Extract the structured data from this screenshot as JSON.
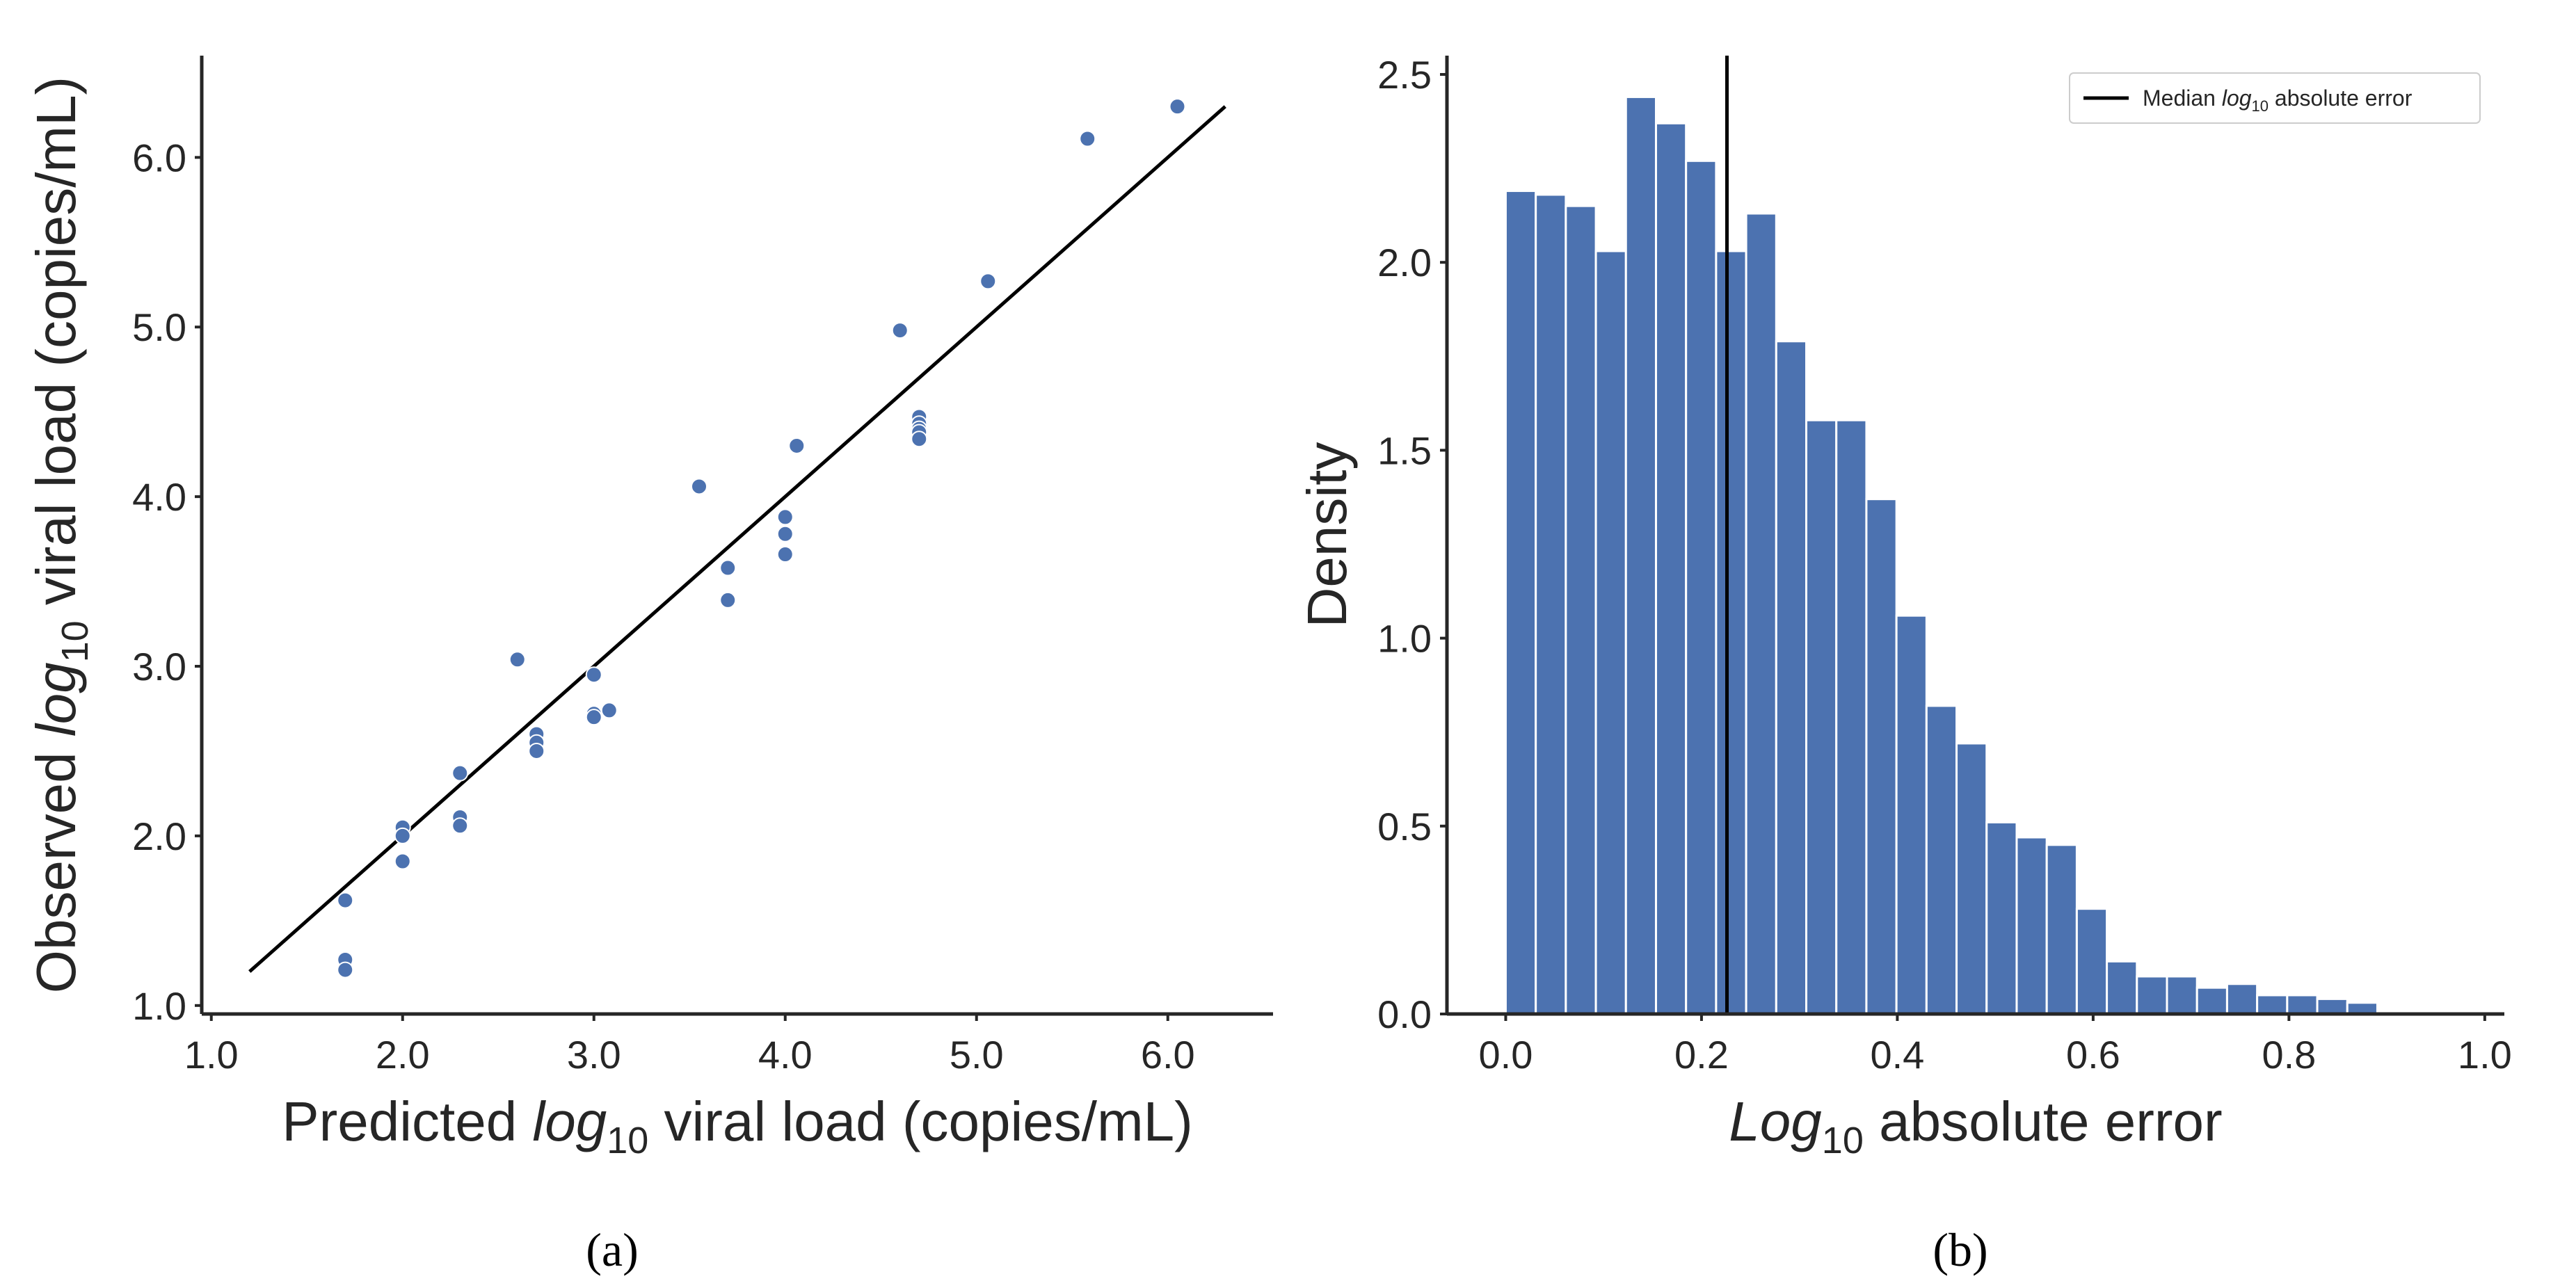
{
  "colors": {
    "marker": "#4c72b0",
    "bar": "#4c72b0",
    "line": "#000000",
    "axis": "#262626"
  },
  "chart_data": [
    {
      "panel": "(a)",
      "type": "scatter",
      "xlabel": {
        "pre": "Predicted ",
        "italic": "log",
        "sub": "10",
        "post": " viral load (copies/mL)"
      },
      "ylabel": {
        "pre": "Observed ",
        "italic": "log",
        "sub": "10",
        "post": " viral load (copies/mL)"
      },
      "xlim": [
        0.95,
        6.55
      ],
      "ylim": [
        0.95,
        6.6
      ],
      "xticks": [
        1.0,
        2.0,
        3.0,
        4.0,
        5.0,
        6.0
      ],
      "xtick_labels": [
        "1.0",
        "2.0",
        "3.0",
        "4.0",
        "5.0",
        "6.0"
      ],
      "yticks": [
        1.0,
        2.0,
        3.0,
        4.0,
        5.0,
        6.0
      ],
      "ytick_labels": [
        "1.0",
        "2.0",
        "3.0",
        "4.0",
        "5.0",
        "6.0"
      ],
      "identity_line": {
        "from": 1.2,
        "to": 6.3
      },
      "points": [
        [
          1.7,
          1.62
        ],
        [
          1.7,
          1.27
        ],
        [
          1.7,
          1.21
        ],
        [
          2.0,
          2.05
        ],
        [
          2.0,
          2.0
        ],
        [
          2.0,
          1.85
        ],
        [
          2.3,
          2.37
        ],
        [
          2.3,
          2.11
        ],
        [
          2.3,
          2.06
        ],
        [
          2.6,
          3.04
        ],
        [
          2.7,
          2.6
        ],
        [
          2.7,
          2.55
        ],
        [
          2.7,
          2.5
        ],
        [
          3.0,
          2.95
        ],
        [
          3.0,
          2.72
        ],
        [
          3.0,
          2.7
        ],
        [
          3.08,
          2.74
        ],
        [
          3.55,
          4.06
        ],
        [
          3.7,
          3.58
        ],
        [
          3.7,
          3.39
        ],
        [
          4.0,
          3.88
        ],
        [
          4.0,
          3.78
        ],
        [
          4.0,
          3.66
        ],
        [
          4.06,
          4.3
        ],
        [
          4.6,
          4.98
        ],
        [
          4.7,
          4.47
        ],
        [
          4.7,
          4.43
        ],
        [
          4.7,
          4.4
        ],
        [
          4.7,
          4.38
        ],
        [
          4.7,
          4.34
        ],
        [
          5.06,
          5.27
        ],
        [
          5.58,
          6.11
        ],
        [
          6.05,
          6.3
        ]
      ]
    },
    {
      "panel": "(b)",
      "type": "bar",
      "subtype": "histogram",
      "xlabel": {
        "italic": "Log",
        "sub": "10",
        "post": " absolute error"
      },
      "ylabel": "Density",
      "xlim": [
        -0.06,
        1.02
      ],
      "ylim": [
        0,
        2.55
      ],
      "xticks": [
        0.0,
        0.2,
        0.4,
        0.6,
        0.8,
        1.0
      ],
      "xtick_labels": [
        "0.0",
        "0.2",
        "0.4",
        "0.6",
        "0.8",
        "1.0"
      ],
      "yticks": [
        0.0,
        0.5,
        1.0,
        1.5,
        2.0,
        2.5
      ],
      "ytick_labels": [
        "0.0",
        "0.5",
        "1.0",
        "1.5",
        "2.0",
        "2.5"
      ],
      "bin_start": 0.0,
      "bin_width": 0.0307,
      "values": [
        2.19,
        2.18,
        2.15,
        2.03,
        2.44,
        2.37,
        2.27,
        2.03,
        2.13,
        1.79,
        1.58,
        1.58,
        1.37,
        1.06,
        0.82,
        0.72,
        0.51,
        0.47,
        0.45,
        0.28,
        0.14,
        0.1,
        0.1,
        0.07,
        0.08,
        0.05,
        0.05,
        0.04,
        0.03
      ],
      "median_line": 0.226,
      "legend": {
        "label_pre": "Median ",
        "label_italic": "log",
        "label_sub": "10",
        "label_post": " absolute error",
        "position": "top-right"
      }
    }
  ]
}
